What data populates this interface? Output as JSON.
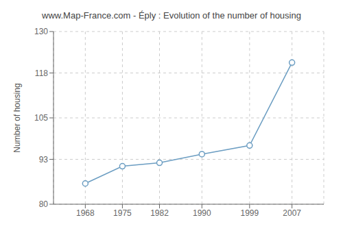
{
  "chart_data": {
    "type": "line",
    "title": "www.Map-France.com - Éply : Evolution of the number of housing",
    "ylabel": "Number of housing",
    "x": [
      1968,
      1975,
      1982,
      1990,
      1999,
      2007
    ],
    "values": [
      86,
      91,
      92,
      94.5,
      97,
      121
    ],
    "color": "#6b9dc2",
    "marker": "circle",
    "xlim": [
      1962,
      2013
    ],
    "xticks": [
      1968,
      1975,
      1982,
      1990,
      1999,
      2007
    ],
    "ylim": [
      80,
      130
    ],
    "yticks": [
      80,
      93,
      105,
      118,
      130
    ],
    "grid": true
  }
}
